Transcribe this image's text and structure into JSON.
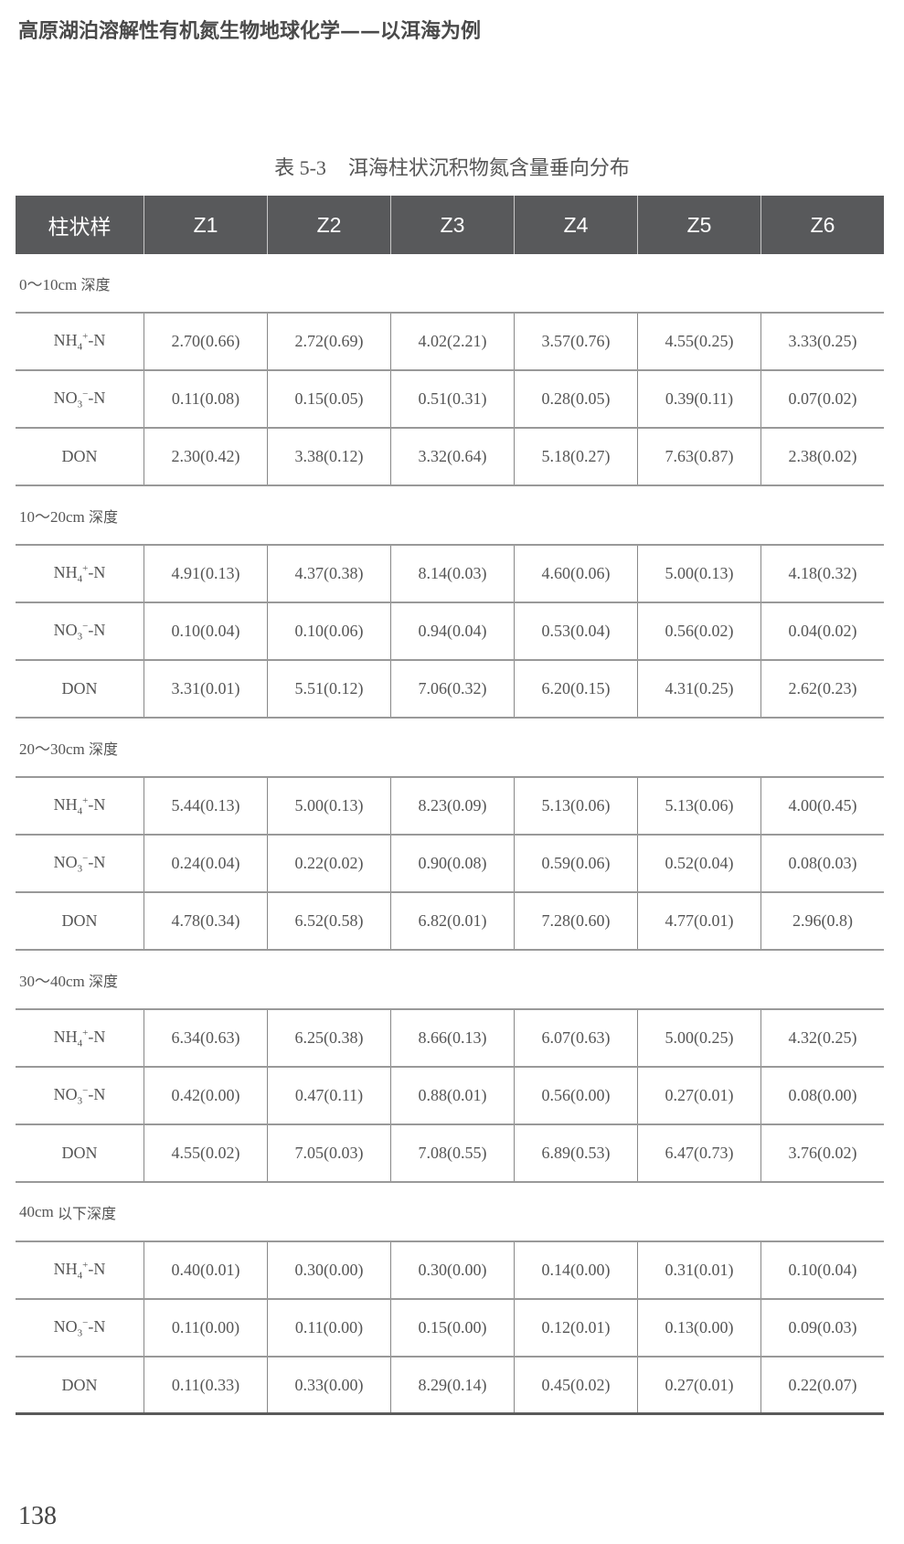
{
  "running_head": "高原湖泊溶解性有机氮生物地球化学——以洱海为例",
  "caption": {
    "number": "表 5-3",
    "title": "洱海柱状沉积物氮含量垂向分布"
  },
  "table": {
    "header": [
      "柱状样",
      "Z1",
      "Z2",
      "Z3",
      "Z4",
      "Z5",
      "Z6"
    ],
    "sections": [
      {
        "depth_num": "0～10cm",
        "depth_text": "深度",
        "rows": [
          {
            "label": "NH4+-N",
            "values": [
              "2.70(0.66)",
              "2.72(0.69)",
              "4.02(2.21)",
              "3.57(0.76)",
              "4.55(0.25)",
              "3.33(0.25)"
            ]
          },
          {
            "label": "NO3−-N",
            "values": [
              "0.11(0.08)",
              "0.15(0.05)",
              "0.51(0.31)",
              "0.28(0.05)",
              "0.39(0.11)",
              "0.07(0.02)"
            ]
          },
          {
            "label": "DON",
            "values": [
              "2.30(0.42)",
              "3.38(0.12)",
              "3.32(0.64)",
              "5.18(0.27)",
              "7.63(0.87)",
              "2.38(0.02)"
            ]
          }
        ]
      },
      {
        "depth_num": "10～20cm",
        "depth_text": "深度",
        "rows": [
          {
            "label": "NH4+-N",
            "values": [
              "4.91(0.13)",
              "4.37(0.38)",
              "8.14(0.03)",
              "4.60(0.06)",
              "5.00(0.13)",
              "4.18(0.32)"
            ]
          },
          {
            "label": "NO3−-N",
            "values": [
              "0.10(0.04)",
              "0.10(0.06)",
              "0.94(0.04)",
              "0.53(0.04)",
              "0.56(0.02)",
              "0.04(0.02)"
            ]
          },
          {
            "label": "DON",
            "values": [
              "3.31(0.01)",
              "5.51(0.12)",
              "7.06(0.32)",
              "6.20(0.15)",
              "4.31(0.25)",
              "2.62(0.23)"
            ]
          }
        ]
      },
      {
        "depth_num": "20～30cm",
        "depth_text": "深度",
        "rows": [
          {
            "label": "NH4+-N",
            "values": [
              "5.44(0.13)",
              "5.00(0.13)",
              "8.23(0.09)",
              "5.13(0.06)",
              "5.13(0.06)",
              "4.00(0.45)"
            ]
          },
          {
            "label": "NO3−-N",
            "values": [
              "0.24(0.04)",
              "0.22(0.02)",
              "0.90(0.08)",
              "0.59(0.06)",
              "0.52(0.04)",
              "0.08(0.03)"
            ]
          },
          {
            "label": "DON",
            "values": [
              "4.78(0.34)",
              "6.52(0.58)",
              "6.82(0.01)",
              "7.28(0.60)",
              "4.77(0.01)",
              "2.96(0.8)"
            ]
          }
        ]
      },
      {
        "depth_num": "30～40cm",
        "depth_text": "深度",
        "rows": [
          {
            "label": "NH4+-N",
            "values": [
              "6.34(0.63)",
              "6.25(0.38)",
              "8.66(0.13)",
              "6.07(0.63)",
              "5.00(0.25)",
              "4.32(0.25)"
            ]
          },
          {
            "label": "NO3−-N",
            "values": [
              "0.42(0.00)",
              "0.47(0.11)",
              "0.88(0.01)",
              "0.56(0.00)",
              "0.27(0.01)",
              "0.08(0.00)"
            ]
          },
          {
            "label": "DON",
            "values": [
              "4.55(0.02)",
              "7.05(0.03)",
              "7.08(0.55)",
              "6.89(0.53)",
              "6.47(0.73)",
              "3.76(0.02)"
            ]
          }
        ]
      },
      {
        "depth_num": "40cm",
        "depth_text": "以下深度",
        "rows": [
          {
            "label": "NH4+-N",
            "values": [
              "0.40(0.01)",
              "0.30(0.00)",
              "0.30(0.00)",
              "0.14(0.00)",
              "0.31(0.01)",
              "0.10(0.04)"
            ]
          },
          {
            "label": "NO3−-N",
            "values": [
              "0.11(0.00)",
              "0.11(0.00)",
              "0.15(0.00)",
              "0.12(0.01)",
              "0.13(0.00)",
              "0.09(0.03)"
            ]
          },
          {
            "label": "DON",
            "values": [
              "0.11(0.33)",
              "0.33(0.00)",
              "8.29(0.14)",
              "0.45(0.02)",
              "0.27(0.01)",
              "0.22(0.07)"
            ]
          }
        ]
      }
    ]
  },
  "page_number": "138",
  "colors": {
    "header_bg": "#58595b",
    "text": "#555555",
    "rule": "#999999"
  }
}
